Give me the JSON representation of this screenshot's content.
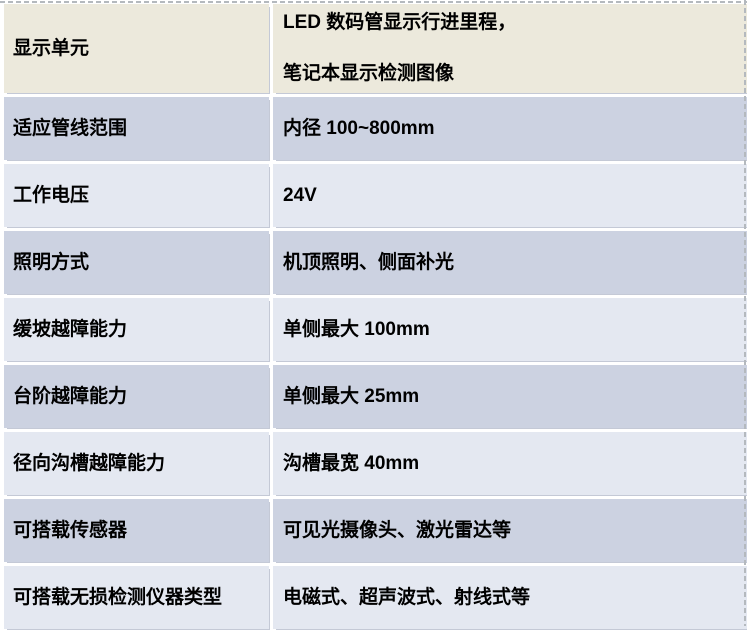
{
  "table": {
    "rows": [
      {
        "label": "显示单元",
        "value": "LED 数码管显示行进里程，",
        "value_line2": "笔记本显示检测图像"
      },
      {
        "label": "适应管线范围",
        "value": "内径 100~800mm"
      },
      {
        "label": "工作电压",
        "value": "24V"
      },
      {
        "label": "照明方式",
        "value": "机顶照明、侧面补光"
      },
      {
        "label": "缓坡越障能力",
        "value": "单侧最大 100mm"
      },
      {
        "label": "台阶越障能力",
        "value": "单侧最大 25mm"
      },
      {
        "label": "径向沟槽越障能力",
        "value": "沟槽最宽 40mm"
      },
      {
        "label": "可搭载传感器",
        "value": "可见光摄像头、激光雷达等"
      },
      {
        "label": "可搭载无损检测仪器类型",
        "value": "电磁式、超声波式、射线式等"
      }
    ],
    "colors": {
      "header_row_bg": "#ece9dc",
      "band_dark_bg": "#ccd2e1",
      "band_light_bg": "#e4e8f1",
      "text": "#000000",
      "gridline": "#ffffff",
      "dashed_border": "#b4b9be"
    }
  }
}
